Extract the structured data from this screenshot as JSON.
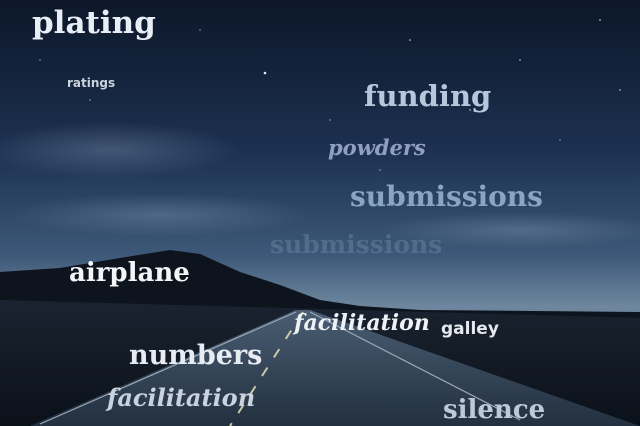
{
  "colors": {
    "sky_top": "#0e1a2e",
    "sky_mid": "#2b4467",
    "sky_horizon": "#6f8aa6",
    "mountain": "#0d121b",
    "ground": "#111822",
    "road": "#1e2a38"
  },
  "words": [
    "plating",
    "ratings",
    "funding",
    "powders",
    "submissions",
    "submissions",
    "airplane",
    "facilitation",
    "galley",
    "numbers",
    "facilitation",
    "silence"
  ]
}
